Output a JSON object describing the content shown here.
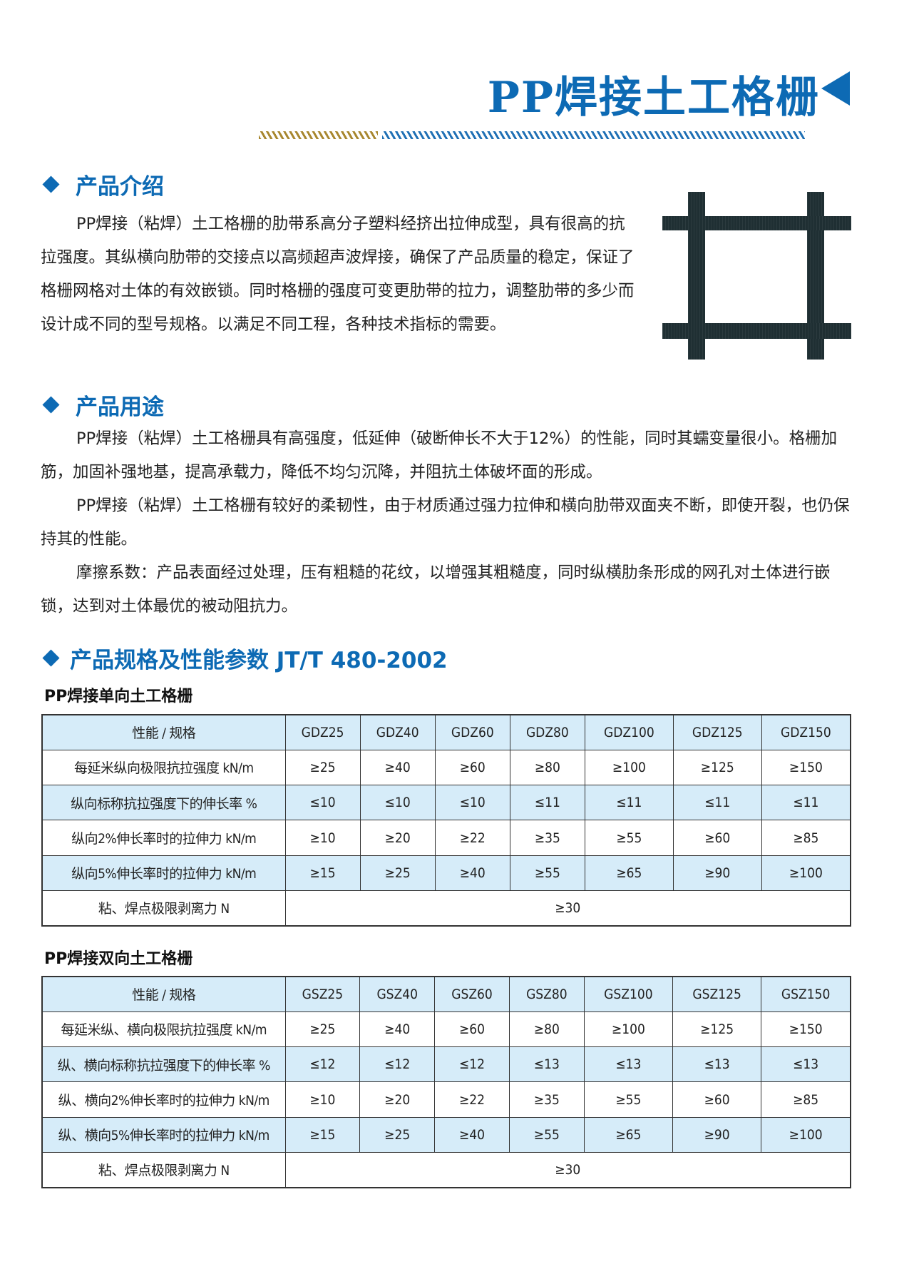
{
  "title": "PP焊接土工格栅",
  "colors": {
    "brand_blue": "#0d6ab4",
    "gold": "#a8872f",
    "row_blue": "#d6ecf9"
  },
  "sections": [
    {
      "heading": "产品介绍",
      "paragraphs": [
        "PP焊接（粘焊）土工格栅的肋带系高分子塑料经挤出拉伸成型，具有很高的抗拉强度。其纵横向肋带的交接点以高频超声波焊接，确保了产品质量的稳定，保证了格栅网格对土体的有效嵌锁。同时格栅的强度可变更肋带的拉力，调整肋带的多少而设计成不同的型号规格。以满足不同工程，各种技术指标的需要。"
      ]
    },
    {
      "heading": "产品用途",
      "paragraphs": [
        "PP焊接（粘焊）土工格栅具有高强度，低延伸（破断伸长不大于12%）的性能，同时其蠕变量很小。格栅加筋，加固补强地基，提高承载力，降低不均匀沉降，并阻抗土体破坏面的形成。",
        "PP焊接（粘焊）土工格栅有较好的柔韧性，由于材质通过强力拉伸和横向肋带双面夹不断，即使开裂，也仍保持其的性能。",
        "摩擦系数：产品表面经过处理，压有粗糙的花纹，以增强其粗糙度，同时纵横肋条形成的网孔对土体进行嵌锁，达到对土体最优的被动阻抗力。"
      ]
    },
    {
      "heading": "产品规格及性能参数 JT/T 480-2002"
    }
  ],
  "tables": [
    {
      "subtitle": "PP焊接单向土工格栅",
      "header": [
        "性能 / 规格",
        "GDZ25",
        "GDZ40",
        "GDZ60",
        "GDZ80",
        "GDZ100",
        "GDZ125",
        "GDZ150"
      ],
      "rows": [
        [
          "每延米纵向极限抗拉强度 kN/m",
          "≥25",
          "≥40",
          "≥60",
          "≥80",
          "≥100",
          "≥125",
          "≥150"
        ],
        [
          "纵向标称抗拉强度下的伸长率 %",
          "≤10",
          "≤10",
          "≤10",
          "≤11",
          "≤11",
          "≤11",
          "≤11"
        ],
        [
          "纵向2%伸长率时的拉伸力 kN/m",
          "≥10",
          "≥20",
          "≥22",
          "≥35",
          "≥55",
          "≥60",
          "≥85"
        ],
        [
          "纵向5%伸长率时的拉伸力 kN/m",
          "≥15",
          "≥25",
          "≥40",
          "≥55",
          "≥65",
          "≥90",
          "≥100"
        ]
      ],
      "last_row": [
        "粘、焊点极限剥离力 N",
        "≥30"
      ]
    },
    {
      "subtitle": "PP焊接双向土工格栅",
      "header": [
        "性能 / 规格",
        "GSZ25",
        "GSZ40",
        "GSZ60",
        "GSZ80",
        "GSZ100",
        "GSZ125",
        "GSZ150"
      ],
      "rows": [
        [
          "每延米纵、横向极限抗拉强度 kN/m",
          "≥25",
          "≥40",
          "≥60",
          "≥80",
          "≥100",
          "≥125",
          "≥150"
        ],
        [
          "纵、横向标称抗拉强度下的伸长率 %",
          "≤12",
          "≤12",
          "≤12",
          "≤13",
          "≤13",
          "≤13",
          "≤13"
        ],
        [
          "纵、横向2%伸长率时的拉伸力 kN/m",
          "≥10",
          "≥20",
          "≥22",
          "≥35",
          "≥55",
          "≥60",
          "≥85"
        ],
        [
          "纵、横向5%伸长率时的拉伸力 kN/m",
          "≥15",
          "≥25",
          "≥40",
          "≥55",
          "≥65",
          "≥90",
          "≥100"
        ]
      ],
      "last_row": [
        "粘、焊点极限剥离力 N",
        "≥30"
      ]
    }
  ]
}
